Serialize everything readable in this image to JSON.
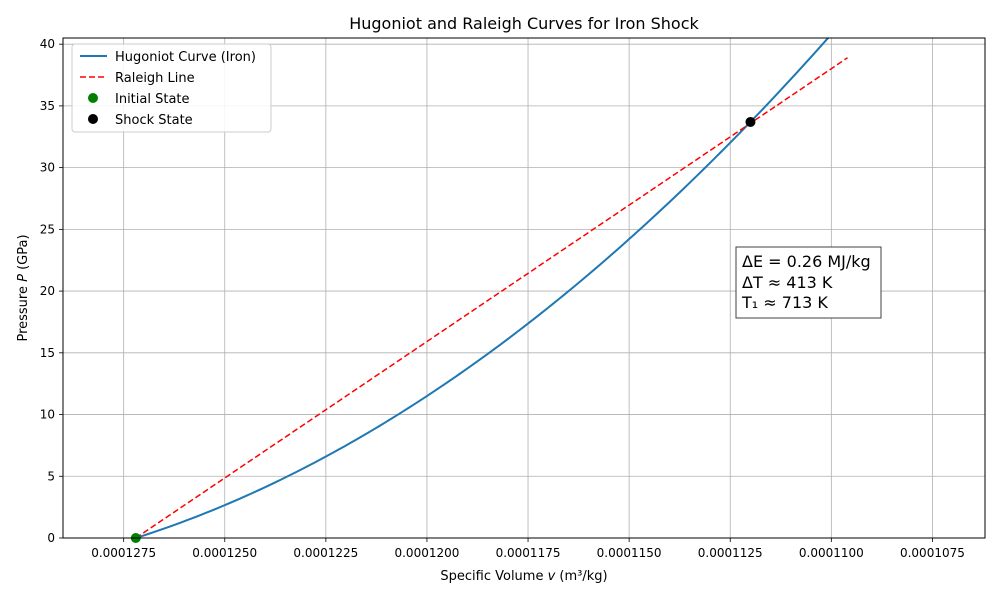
{
  "chart_data": {
    "type": "line",
    "title": "Hugoniot and Raleigh Curves for Iron Shock",
    "xlabel_prefix": "Specific Volume ",
    "xlabel_var": "v",
    "xlabel_suffix": " (m³/kg)",
    "ylabel_prefix": "Pressure ",
    "ylabel_var": "P",
    "ylabel_suffix": " (GPa)",
    "x_reversed": true,
    "xlim": [
      0.000129,
      0.0001062
    ],
    "ylim": [
      0,
      40.5
    ],
    "grid": true,
    "legend_position": "top-left",
    "x_ticks": [
      0.0001275,
      0.000125,
      0.0001225,
      0.00012,
      0.0001175,
      0.000115,
      0.0001125,
      0.00011,
      0.0001075
    ],
    "x_tick_labels": [
      "0.0001275",
      "0.0001250",
      "0.0001225",
      "0.0001200",
      "0.0001175",
      "0.0001150",
      "0.0001125",
      "0.0001100",
      "0.0001075"
    ],
    "y_ticks": [
      0,
      5,
      10,
      15,
      20,
      25,
      30,
      35,
      40
    ],
    "y_tick_labels": [
      "0",
      "5",
      "10",
      "15",
      "20",
      "25",
      "30",
      "35",
      "40"
    ],
    "series": [
      {
        "name": "Hugoniot Curve (Iron)",
        "kind": "line",
        "color": "#1f77b4",
        "x": [
          0.0001272,
          0.000126,
          0.000125,
          0.000124,
          0.000123,
          0.000122,
          0.000121,
          0.00012,
          0.000119,
          0.000118,
          0.000117,
          0.000116,
          0.000115,
          0.000114,
          0.000113,
          0.000112,
          0.000111,
          0.00011
        ],
        "y": [
          0,
          1.6,
          3.0,
          4.5,
          6.1,
          7.7,
          9.9,
          12.1,
          14.5,
          17.0,
          19.8,
          22.8,
          24.3,
          27.7,
          31.3,
          33.7,
          37.4,
          40.8
        ]
      },
      {
        "name": "Raleigh Line",
        "kind": "dashed",
        "color": "#ff0000",
        "x": [
          0.0001272,
          0.0001096
        ],
        "y": [
          0,
          38.9
        ]
      },
      {
        "name": "Initial State",
        "kind": "marker",
        "color": "#008000",
        "x": [
          0.0001272
        ],
        "y": [
          0
        ]
      },
      {
        "name": "Shock State",
        "kind": "marker",
        "color": "#000000",
        "x": [
          0.000112
        ],
        "y": [
          33.7
        ]
      }
    ],
    "annotation": {
      "lines": [
        "ΔE = 0.26 MJ/kg",
        "ΔT ≈ 413 K",
        "T₁ ≈ 713 K"
      ]
    }
  }
}
